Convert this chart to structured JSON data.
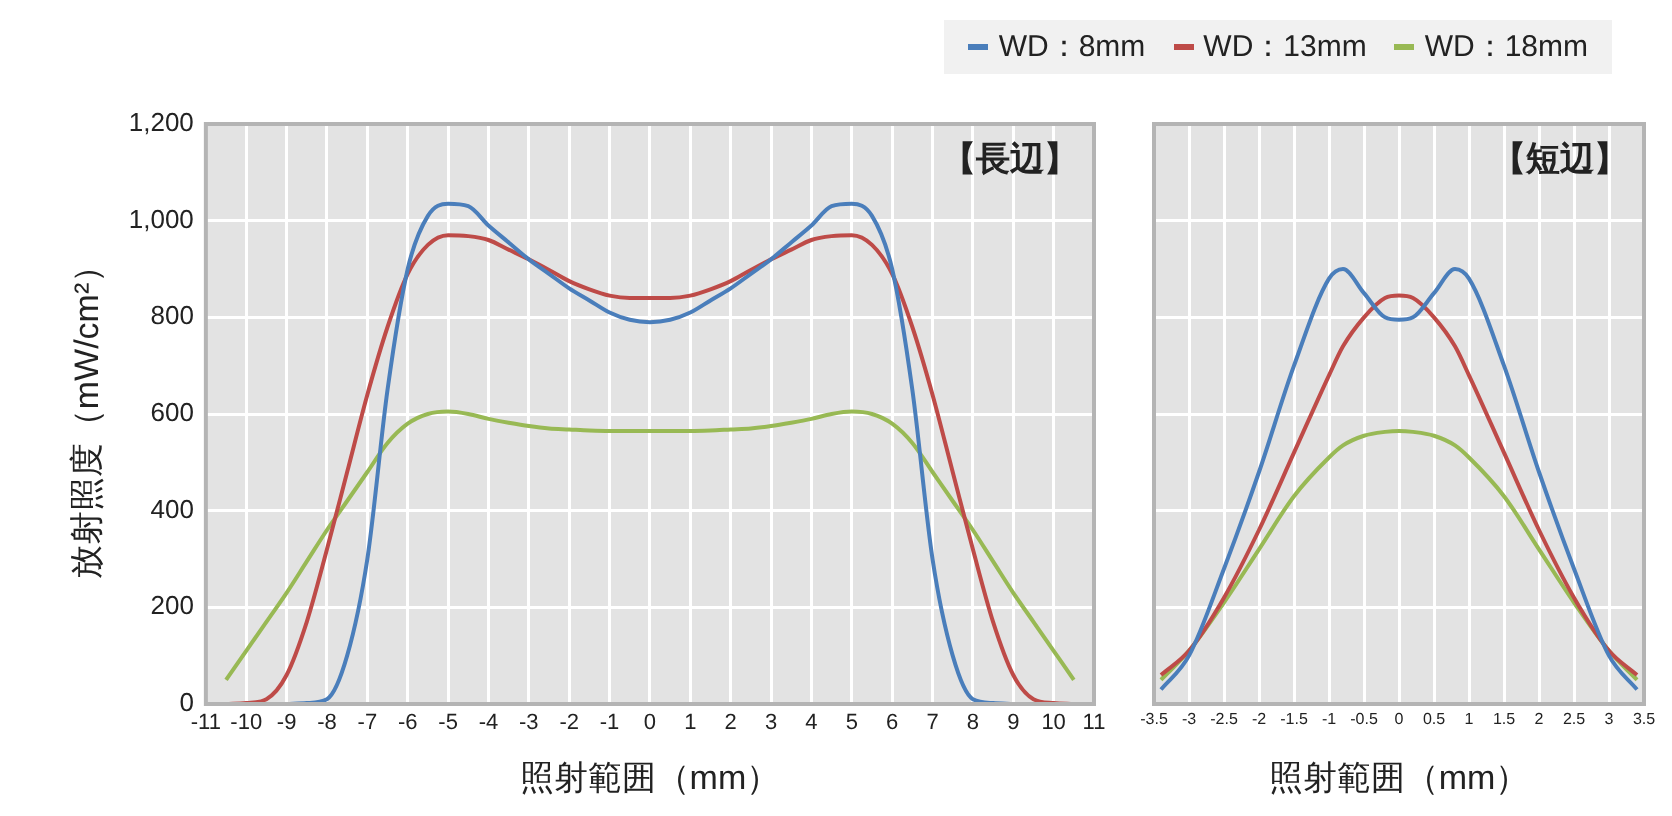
{
  "chart_data": [
    {
      "type": "line",
      "xlabel": "照射範囲（mm）",
      "ylabel": "放射照度（mW/cm²）",
      "annotations": [
        "【長辺】"
      ],
      "legend": "top right",
      "grid": true,
      "marker": "none",
      "line_style": "solid",
      "x": [
        -10.5,
        -10,
        -9.5,
        -9,
        -8.5,
        -8,
        -7.5,
        -7,
        -6.5,
        -6,
        -5.5,
        -5,
        -4.5,
        -4,
        -3.5,
        -3,
        -2.5,
        -2,
        -1.5,
        -1,
        -0.5,
        0,
        0.5,
        1,
        1.5,
        2,
        2.5,
        3,
        3.5,
        4,
        4.5,
        5,
        5.5,
        6,
        6.5,
        7,
        7.5,
        8,
        8.5,
        9,
        9.5,
        10,
        10.5
      ],
      "xlim": [
        -11,
        11
      ],
      "xticks": [
        -11,
        -10,
        -9,
        -8,
        -7,
        -6,
        -5,
        -4,
        -3,
        -2,
        -1,
        0,
        1,
        2,
        3,
        4,
        5,
        6,
        7,
        8,
        9,
        10,
        11
      ],
      "ylim": [
        0,
        1200
      ],
      "yticks": [
        0,
        200,
        400,
        600,
        800,
        {
          "value": 1000,
          "label": "1,000"
        },
        {
          "value": 1200,
          "label": "1,200"
        }
      ],
      "series": [
        {
          "name": "WD：8mm",
          "color": "#4a7ebb",
          "values": [
            null,
            null,
            null,
            0,
            2,
            10,
            100,
            300,
            650,
            900,
            1010,
            1035,
            1030,
            990,
            955,
            920,
            890,
            860,
            835,
            810,
            795,
            790,
            795,
            810,
            835,
            860,
            890,
            920,
            955,
            990,
            1030,
            1035,
            1010,
            900,
            650,
            300,
            100,
            10,
            2,
            0,
            null,
            null,
            null
          ]
        },
        {
          "name": "WD：13mm",
          "color": "#be4b48",
          "values": [
            0,
            2,
            10,
            60,
            170,
            320,
            480,
            640,
            780,
            890,
            950,
            970,
            968,
            960,
            940,
            920,
            898,
            875,
            858,
            845,
            840,
            840,
            840,
            845,
            858,
            875,
            898,
            920,
            940,
            960,
            968,
            970,
            950,
            890,
            780,
            640,
            480,
            320,
            170,
            60,
            10,
            2,
            0
          ]
        },
        {
          "name": "WD：18mm",
          "color": "#98b954",
          "values": [
            50,
            110,
            170,
            230,
            295,
            360,
            420,
            480,
            540,
            580,
            600,
            605,
            600,
            590,
            582,
            575,
            570,
            568,
            566,
            565,
            565,
            565,
            565,
            565,
            566,
            568,
            570,
            575,
            582,
            590,
            600,
            605,
            600,
            580,
            540,
            480,
            420,
            360,
            295,
            230,
            170,
            110,
            50
          ]
        }
      ]
    },
    {
      "type": "line",
      "xlabel": "照射範囲（mm）",
      "annotations": [
        "【短辺】"
      ],
      "grid": true,
      "marker": "none",
      "line_style": "solid",
      "tick_labels": "x",
      "x": [
        -3.4,
        -3,
        -2.5,
        -2,
        -1.5,
        -1,
        -0.8,
        -0.5,
        -0.2,
        0,
        0.2,
        0.5,
        0.8,
        1,
        1.5,
        2,
        2.5,
        3,
        3.4
      ],
      "xlim": [
        -3.5,
        3.5
      ],
      "xticks": [
        -3.5,
        -3,
        -2.5,
        -2,
        -1.5,
        -1,
        -0.5,
        0,
        0.5,
        1,
        1.5,
        2,
        2.5,
        3,
        3.5
      ],
      "ylim": [
        0,
        1200
      ],
      "series": [
        {
          "color": "#4a7ebb",
          "values": [
            30,
            100,
            280,
            480,
            700,
            880,
            900,
            850,
            800,
            795,
            800,
            850,
            900,
            880,
            700,
            480,
            280,
            100,
            30
          ]
        },
        {
          "color": "#be4b48",
          "values": [
            60,
            110,
            220,
            360,
            520,
            680,
            740,
            800,
            840,
            845,
            840,
            800,
            740,
            680,
            520,
            360,
            220,
            110,
            60
          ]
        },
        {
          "color": "#98b954",
          "values": [
            50,
            110,
            210,
            320,
            430,
            510,
            535,
            555,
            563,
            565,
            563,
            555,
            535,
            510,
            430,
            320,
            210,
            110,
            50
          ]
        }
      ]
    }
  ]
}
